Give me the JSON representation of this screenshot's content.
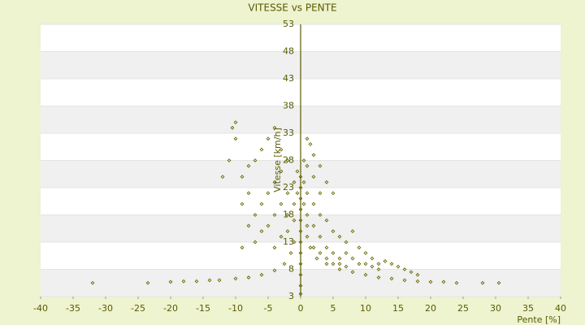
{
  "chart_data": {
    "type": "scatter",
    "title": "VITESSE vs PENTE",
    "x_label": "Pente [%]",
    "y_label": "Vitesse [km/h]",
    "color": "#6b6b00",
    "grid": true,
    "xlim": [
      -40,
      40
    ],
    "xticks": [
      -40,
      -35,
      -30,
      -25,
      -20,
      -15,
      -10,
      -5,
      0,
      5,
      10,
      15,
      20,
      25,
      30,
      35,
      40
    ],
    "ylim": [
      3,
      53
    ],
    "yticks": [
      3,
      8,
      13,
      18,
      23,
      28,
      33,
      38,
      43,
      48,
      53
    ],
    "x": [
      -32,
      -23.5,
      -20,
      -18,
      -16,
      -14,
      -12.5,
      -10,
      -8,
      -6,
      -4,
      -2.5,
      -1.5,
      -1,
      30.5,
      28,
      24,
      22,
      20,
      18,
      16,
      14,
      12,
      10,
      8,
      6,
      4,
      2.5,
      1.5,
      0,
      0,
      0,
      0,
      0,
      0,
      0,
      0,
      0,
      0,
      0,
      0,
      -10,
      -10.5,
      -10,
      -11,
      -12,
      -9,
      -8,
      -7,
      -6,
      -5,
      -4,
      -3,
      -2,
      -3,
      -4,
      -5,
      -6,
      -7,
      -8,
      -9,
      -3,
      -2,
      -1,
      -1,
      -2,
      -4,
      -5,
      -6,
      -7,
      -3,
      -2,
      -1,
      -4,
      -8,
      -9,
      1,
      1.5,
      2,
      1,
      2,
      3,
      4,
      5,
      3,
      2,
      1,
      1,
      2,
      3,
      4,
      5,
      6,
      7,
      8,
      9,
      10,
      11,
      12,
      13,
      14,
      15,
      16,
      17,
      18,
      3,
      4,
      5,
      6,
      7,
      8,
      9,
      2,
      3,
      4,
      5,
      6,
      7,
      10,
      11,
      12,
      1,
      1,
      0.5,
      0.5,
      -0.5,
      -0.5,
      0.5
    ],
    "y": [
      5.5,
      5.5,
      5.7,
      5.8,
      5.8,
      6,
      6,
      6.3,
      6.5,
      7,
      7.8,
      9,
      11,
      13,
      5.5,
      5.5,
      5.5,
      5.7,
      5.7,
      5.8,
      6,
      6.3,
      6.5,
      7,
      7.5,
      8,
      9,
      10,
      12,
      3.5,
      5,
      7,
      9,
      11,
      13,
      15,
      17,
      19,
      21,
      23,
      25,
      35,
      34,
      32,
      28,
      25,
      25,
      27,
      28,
      30,
      32,
      34,
      30,
      28,
      26,
      24,
      22,
      20,
      18,
      22,
      20,
      20,
      22,
      24,
      20,
      18,
      18,
      16,
      15,
      13,
      14,
      15,
      17,
      12,
      16,
      12,
      32,
      31,
      29,
      27,
      25,
      27,
      24,
      22,
      22,
      20,
      22,
      18,
      16,
      18,
      17,
      15,
      14,
      13,
      15,
      12,
      11,
      10,
      9,
      9.5,
      9,
      8.5,
      8,
      7.5,
      7,
      14,
      12,
      11,
      10,
      11,
      10,
      9,
      12,
      11,
      10,
      9,
      9,
      8.5,
      9,
      8.5,
      8,
      14,
      16,
      20,
      24,
      26,
      22,
      28
    ]
  }
}
